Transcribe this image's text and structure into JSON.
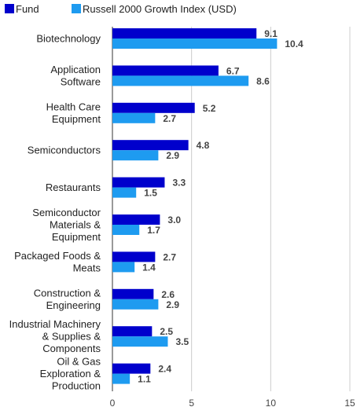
{
  "chart_data": {
    "type": "bar",
    "orientation": "horizontal",
    "categories": [
      [
        "Biotechnology"
      ],
      [
        "Application",
        "Software"
      ],
      [
        "Health Care",
        "Equipment"
      ],
      [
        "Semiconductors"
      ],
      [
        "Restaurants"
      ],
      [
        "Semiconductor",
        "Materials &",
        "Equipment"
      ],
      [
        "Packaged Foods &",
        "Meats"
      ],
      [
        "Construction &",
        "Engineering"
      ],
      [
        "Industrial Machinery",
        "& Supplies &",
        "Components"
      ],
      [
        "Oil & Gas",
        "Exploration &",
        "Production"
      ]
    ],
    "series": [
      {
        "name": "Fund",
        "color": "#0000cc",
        "values": [
          9.1,
          6.7,
          5.2,
          4.8,
          3.3,
          3.0,
          2.7,
          2.6,
          2.5,
          2.4
        ],
        "labels": [
          "9.1",
          "6.7",
          "5.2",
          "4.8",
          "3.3",
          "3.0",
          "2.7",
          "2.6",
          "2.5",
          "2.4"
        ]
      },
      {
        "name": "Russell 2000 Growth Index (USD)",
        "color": "#1e9bf0",
        "values": [
          10.4,
          8.6,
          2.7,
          2.9,
          1.5,
          1.7,
          1.4,
          2.9,
          3.5,
          1.1
        ],
        "labels": [
          "10.4",
          "8.6",
          "2.7",
          "2.9",
          "1.5",
          "1.7",
          "1.4",
          "2.9",
          "3.5",
          "1.1"
        ]
      }
    ],
    "xlim": [
      0,
      15
    ],
    "xticks": [
      0,
      5,
      10,
      15
    ],
    "xtick_labels": [
      "0",
      "5",
      "10",
      "15"
    ],
    "grid": true,
    "legend_position": "top-left"
  }
}
